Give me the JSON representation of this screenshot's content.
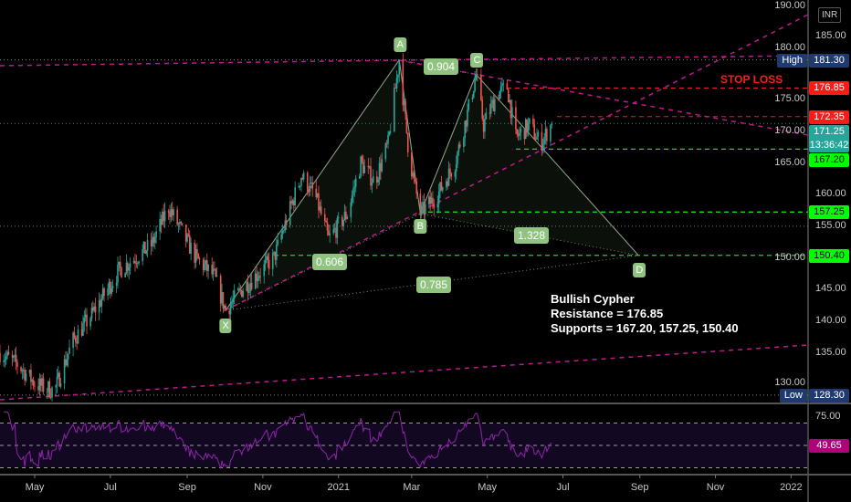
{
  "currency": "INR",
  "chart_data": {
    "type": "line",
    "title": "Bullish Cypher",
    "price_axis": {
      "ylim": [
        127,
        190
      ],
      "ticks": [
        130,
        135,
        140,
        145,
        150,
        155,
        160,
        165,
        170,
        175,
        180,
        185,
        190
      ]
    },
    "time_axis": {
      "ticks": [
        "May",
        "Jul",
        "Sep",
        "Nov",
        "2021",
        "Mar",
        "May",
        "Jul",
        "Sep",
        "Nov",
        "2022"
      ],
      "tick_dates": [
        "2020-05-01",
        "2020-07-01",
        "2020-09-01",
        "2020-11-01",
        "2021-01-01",
        "2021-03-01",
        "2021-05-01",
        "2021-07-01",
        "2021-09-01",
        "2021-11-01",
        "2022-01-01"
      ],
      "xlim": [
        "2020-04-03",
        "2022-02-10"
      ]
    },
    "price_path": [
      [
        "2020-04-03",
        135
      ],
      [
        "2020-04-18",
        133
      ],
      [
        "2020-05-02",
        130
      ],
      [
        "2020-05-17",
        129
      ],
      [
        "2020-06-01",
        137
      ],
      [
        "2020-06-16",
        141
      ],
      [
        "2020-07-08",
        148
      ],
      [
        "2020-08-03",
        152
      ],
      [
        "2020-08-17",
        158
      ],
      [
        "2020-09-08",
        150
      ],
      [
        "2020-09-23",
        147
      ],
      [
        "2020-10-02",
        141.7
      ],
      [
        "2020-10-15",
        145
      ],
      [
        "2020-11-10",
        150
      ],
      [
        "2020-12-02",
        163
      ],
      [
        "2020-12-13",
        160
      ],
      [
        "2020-12-24",
        153
      ],
      [
        "2021-01-08",
        157
      ],
      [
        "2021-01-19",
        165
      ],
      [
        "2021-01-30",
        162
      ],
      [
        "2021-02-10",
        168
      ],
      [
        "2021-02-19",
        181.3
      ],
      [
        "2021-02-27",
        166
      ],
      [
        "2021-03-08",
        157
      ],
      [
        "2021-03-22",
        160
      ],
      [
        "2021-04-05",
        165
      ],
      [
        "2021-04-14",
        172
      ],
      [
        "2021-04-22",
        179
      ],
      [
        "2021-04-28",
        171
      ],
      [
        "2021-05-09",
        176
      ],
      [
        "2021-05-17",
        177
      ],
      [
        "2021-05-24",
        169
      ],
      [
        "2021-06-04",
        171
      ],
      [
        "2021-06-13",
        168
      ],
      [
        "2021-06-22",
        171.25
      ]
    ],
    "pattern": {
      "name": "Bullish Cypher",
      "points": [
        {
          "label": "X",
          "date": "2020-10-02",
          "price": 141.7
        },
        {
          "label": "A",
          "date": "2021-02-19",
          "price": 181.3
        },
        {
          "label": "B",
          "date": "2021-03-08",
          "price": 157.0
        },
        {
          "label": "C",
          "date": "2021-04-22",
          "price": 179.0
        },
        {
          "label": "D",
          "date": "2021-08-31",
          "price": 150.4
        }
      ],
      "ratios": [
        {
          "label": "0.606",
          "between": "X-B"
        },
        {
          "label": "0.904",
          "between": "A-C"
        },
        {
          "label": "1.328",
          "between": "B-D"
        },
        {
          "label": "0.785",
          "between": "X-D"
        }
      ]
    },
    "levels": [
      {
        "price": 181.3,
        "label": "181.30",
        "tag": "High",
        "color": "#1e3a6e"
      },
      {
        "price": 176.85,
        "label": "176.85",
        "color": "#ff1a1a"
      },
      {
        "price": 172.35,
        "label": "172.35",
        "color": "#ff1a1a"
      },
      {
        "price": 171.25,
        "label": "171.25",
        "sub": "13:36:42",
        "color": "#26a69a"
      },
      {
        "price": 167.2,
        "label": "167.20",
        "color": "#00ff00"
      },
      {
        "price": 157.25,
        "label": "157.25",
        "color": "#00ff00"
      },
      {
        "price": 150.4,
        "label": "150.40",
        "color": "#00ff00"
      },
      {
        "price": 128.3,
        "label": "128.30",
        "tag": "Low",
        "color": "#1e3a6e"
      }
    ],
    "rsi": {
      "period": 14,
      "current": "49.65",
      "bands": [
        30,
        50,
        70
      ],
      "ticks": [
        "75.00"
      ],
      "color": "#b0007a"
    }
  },
  "annotations": {
    "stop_loss": "STOP LOSS",
    "note_title": "Bullish Cypher",
    "note_resistance": "Resistance = 176.85",
    "note_supports": "Supports = 167.20, 157.25, 150.40"
  }
}
